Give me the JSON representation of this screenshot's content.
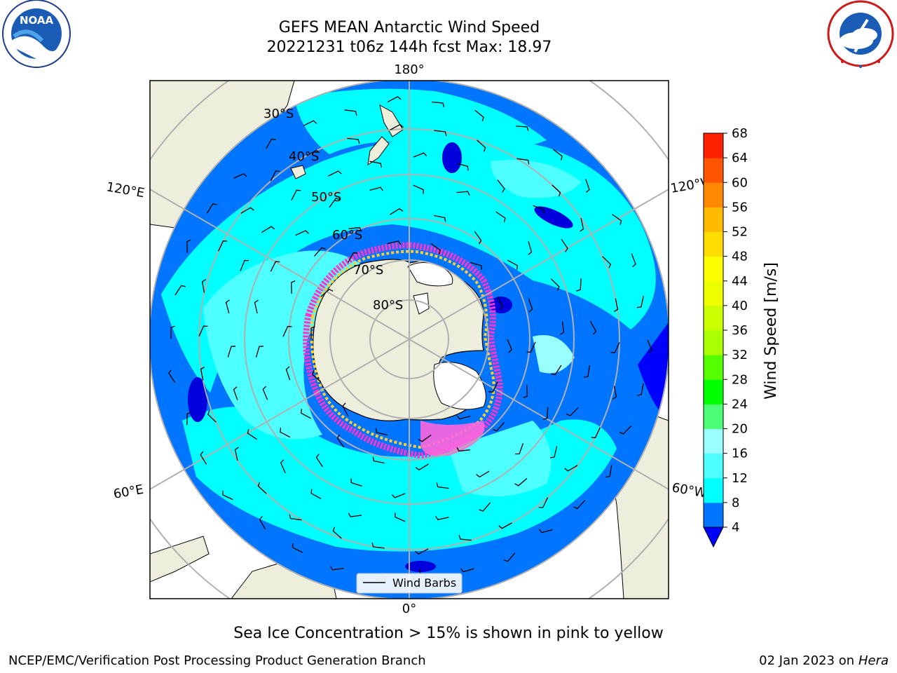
{
  "title": {
    "line1": "GEFS MEAN Antarctic Wind Speed",
    "line2": "20221231 t06z 144h fcst   Max: 18.97"
  },
  "logos": {
    "left": "noara-logo",
    "left_text": "NOAA",
    "right": "nws-logo"
  },
  "map": {
    "projection": "south-polar-stereographic",
    "lon_labels": {
      "top": "180°",
      "bottom": "0°",
      "upper_left": "120°E",
      "upper_right": "120°W",
      "lower_left": "60°E",
      "lower_right": "60°W"
    },
    "lat_labels": [
      "30°S",
      "40°S",
      "50°S",
      "60°S",
      "70°S",
      "80°S"
    ],
    "legend_label": "Wind Barbs",
    "colors": {
      "land": "#eeeedd",
      "ice_land": "#ffffff",
      "grid": "#b0b0b0",
      "sea_ice_pink": "#ff33cc",
      "sea_ice_yellow": "#ffcc33"
    }
  },
  "colorbar": {
    "label": "Wind Speed [m/s]",
    "ticks": [
      "4",
      "8",
      "12",
      "16",
      "20",
      "24",
      "28",
      "32",
      "36",
      "40",
      "44",
      "48",
      "52",
      "56",
      "60",
      "64",
      "68"
    ],
    "colors": [
      "#0075ff",
      "#00ffff",
      "#4dffff",
      "#99ffff",
      "#4dff77",
      "#00ff00",
      "#55ff00",
      "#aaff00",
      "#ccff00",
      "#eeff00",
      "#ffff00",
      "#ffdd00",
      "#ffbb00",
      "#ff8800",
      "#ff5500",
      "#ff2200",
      "#ff0000"
    ],
    "under_color": "#0000ff"
  },
  "caption": "Sea Ice Concentration > 15% is shown in pink to yellow",
  "footer": {
    "left": "NCEP/EMC/Verification Post Processing Product Generation Branch",
    "right_date": "02 Jan 2023 on ",
    "right_host": "Hera"
  }
}
